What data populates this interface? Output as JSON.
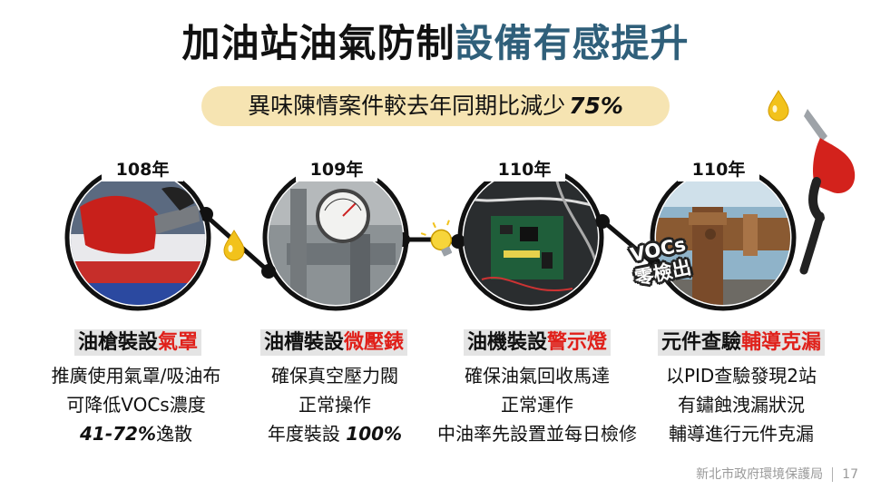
{
  "title": {
    "part1": "加油站油氣防制",
    "part2": "設備有感提升"
  },
  "subtitle": {
    "text": "異味陳情案件較去年同期比減少",
    "percent": "75%"
  },
  "steps": [
    {
      "year": "108年",
      "heading_black": "油槍裝設",
      "heading_red": "氣罩",
      "line1": "推廣使用氣罩/吸油布",
      "line2": "可降低VOCs濃度",
      "line3_bold": "41-72%",
      "line3_text": "逸散"
    },
    {
      "year": "109年",
      "heading_black": "油槽裝設",
      "heading_red": "微壓錶",
      "line1": "確保真空壓力閥",
      "line2": "正常操作",
      "line3_text": "年度裝設",
      "line3_bold": "100%"
    },
    {
      "year": "110年",
      "heading_black": "油機裝設",
      "heading_red": "警示燈",
      "line1": "確保油氣回收馬達",
      "line2": "正常運作",
      "line3": "中油率先設置並每日檢修"
    },
    {
      "year": "110年",
      "heading_black": "元件查驗",
      "heading_red": "輔導克漏",
      "line1": "以PID查驗發現2站",
      "line2": "有鏽蝕洩漏狀況",
      "line3": "輔導進行元件克漏"
    }
  ],
  "vocs_label": {
    "line1": "VOCs",
    "line2": "零檢出"
  },
  "footer": {
    "org": "新北市政府環境保護局",
    "page": "17"
  },
  "colors": {
    "accent_blue": "#2f5f7a",
    "highlight_red": "#e0201a",
    "pill": "#f6e4b2",
    "drop": "#f2c21b"
  },
  "icons": [
    "nozzle-photo",
    "pressure-gauge-photo",
    "circuit-board-photo",
    "rusted-pipe-photo",
    "oil-drop-icon",
    "light-bulb-icon",
    "fuel-nozzle-icon"
  ]
}
